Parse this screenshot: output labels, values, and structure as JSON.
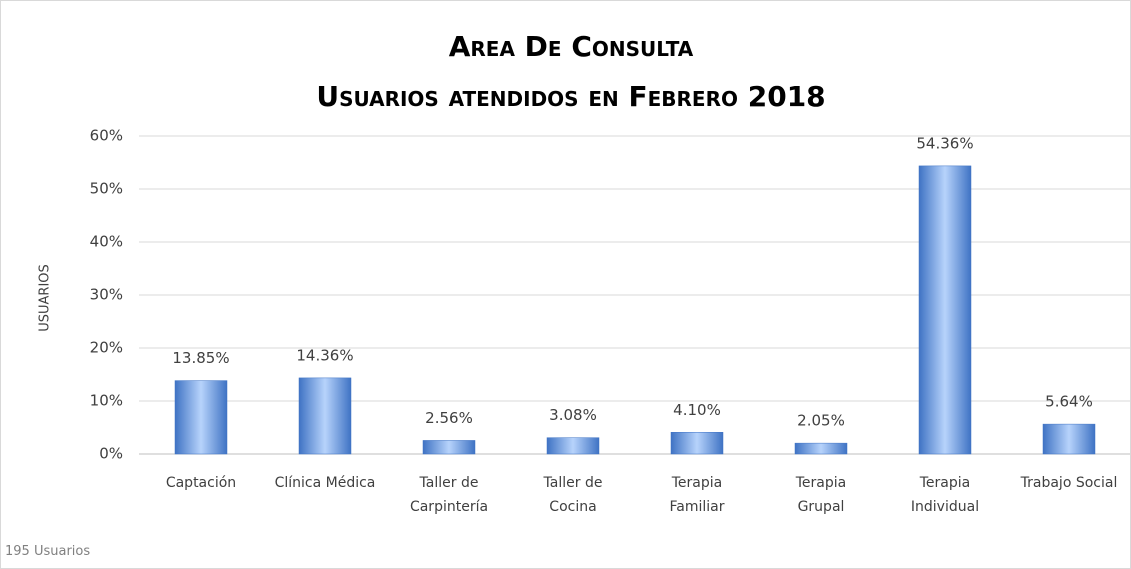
{
  "chart_data": {
    "type": "bar",
    "title": "Area De Consulta",
    "subtitle": "Usuarios atendidos en Febrero 2018",
    "y_label": "USUARIOS",
    "annotation": "195 Usuarios",
    "categories": [
      "Captación",
      "Clínica Médica",
      "Taller de Carpintería",
      "Taller de Cocina",
      "Terapia Familiar",
      "Terapia Grupal",
      "Terapia Individual",
      "Trabajo Social"
    ],
    "values": [
      13.85,
      14.36,
      2.56,
      3.08,
      4.1,
      2.05,
      54.36,
      5.64
    ],
    "value_labels": [
      "13.85%",
      "14.36%",
      "2.56%",
      "3.08%",
      "4.10%",
      "2.05%",
      "54.36%",
      "5.64%"
    ],
    "color": "#3f73c4",
    "ylim": [
      0,
      60
    ],
    "yticks": [
      {
        "value": 0,
        "label": "0%"
      },
      {
        "value": 10,
        "label": "10%"
      },
      {
        "value": 20,
        "label": "20%"
      },
      {
        "value": 30,
        "label": "30%"
      },
      {
        "value": 40,
        "label": "40%"
      },
      {
        "value": 50,
        "label": "50%"
      },
      {
        "value": 60,
        "label": "60%"
      }
    ],
    "grid": true
  }
}
